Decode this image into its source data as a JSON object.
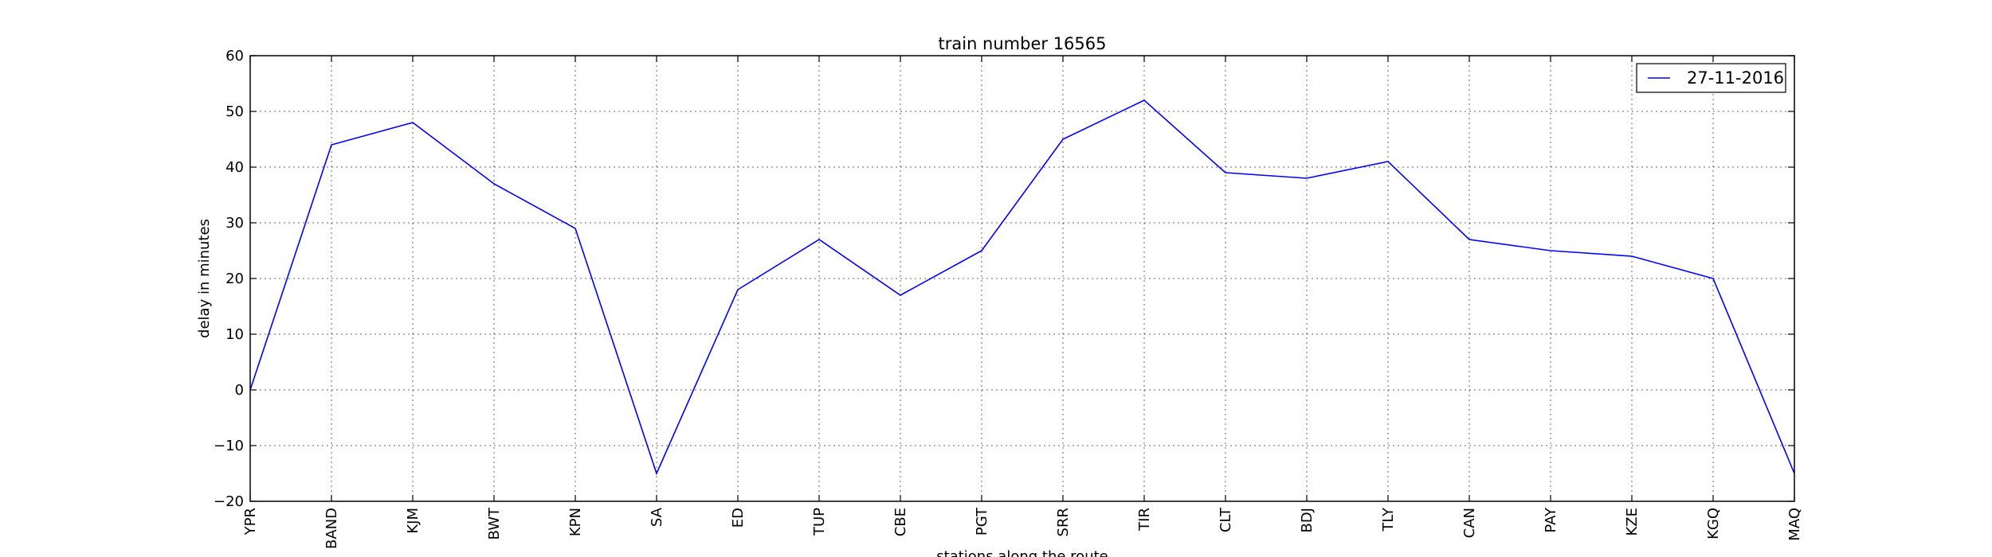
{
  "chart_data": {
    "type": "line",
    "title": "train number 16565",
    "xlabel": "stations along the route",
    "ylabel": "delay in minutes",
    "categories": [
      "YPR",
      "BAND",
      "KJM",
      "BWT",
      "KPN",
      "SA",
      "ED",
      "TUP",
      "CBE",
      "PGT",
      "SRR",
      "TIR",
      "CLT",
      "BDJ",
      "TLY",
      "CAN",
      "PAY",
      "KZE",
      "KGQ",
      "MAQ"
    ],
    "series": [
      {
        "name": "27-11-2016",
        "color": "#0000ff",
        "values": [
          0,
          44,
          48,
          37,
          29,
          -15,
          18,
          27,
          17,
          25,
          45,
          52,
          39,
          38,
          41,
          27,
          25,
          24,
          20,
          -15
        ]
      }
    ],
    "ylim": [
      -20,
      60
    ],
    "yticks": [
      -20,
      -10,
      0,
      10,
      20,
      30,
      40,
      50,
      60
    ],
    "grid": true,
    "legend_position": "top-right"
  }
}
